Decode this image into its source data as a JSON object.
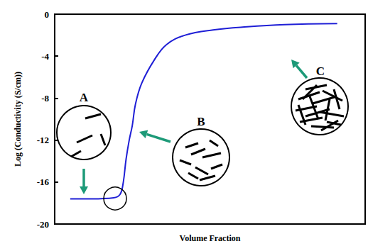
{
  "chart_data": {
    "type": "line",
    "xlabel": "Volume Fraction",
    "ylabel": "Log (Conductivity (S/cm))",
    "x": [
      0.05,
      0.12,
      0.19,
      0.21,
      0.22,
      0.23,
      0.24,
      0.25,
      0.26,
      0.28,
      0.32,
      0.36,
      0.42,
      0.51,
      0.62,
      0.74,
      0.91
    ],
    "values": [
      -17.6,
      -17.6,
      -17.5,
      -17.2,
      -16.2,
      -13.8,
      -12.0,
      -10.6,
      -8.6,
      -6.6,
      -4.4,
      -2.9,
      -2.0,
      -1.5,
      -1.2,
      -1.0,
      -0.9
    ],
    "color": "#1f1fd6",
    "xlim": [
      0,
      1
    ],
    "ylim": [
      -20,
      0
    ],
    "yticks": [
      -20,
      -16,
      -12,
      -8,
      -4,
      0
    ],
    "tick_labels": "y",
    "grid": false,
    "annotations": [
      "A",
      "B",
      "C"
    ]
  }
}
